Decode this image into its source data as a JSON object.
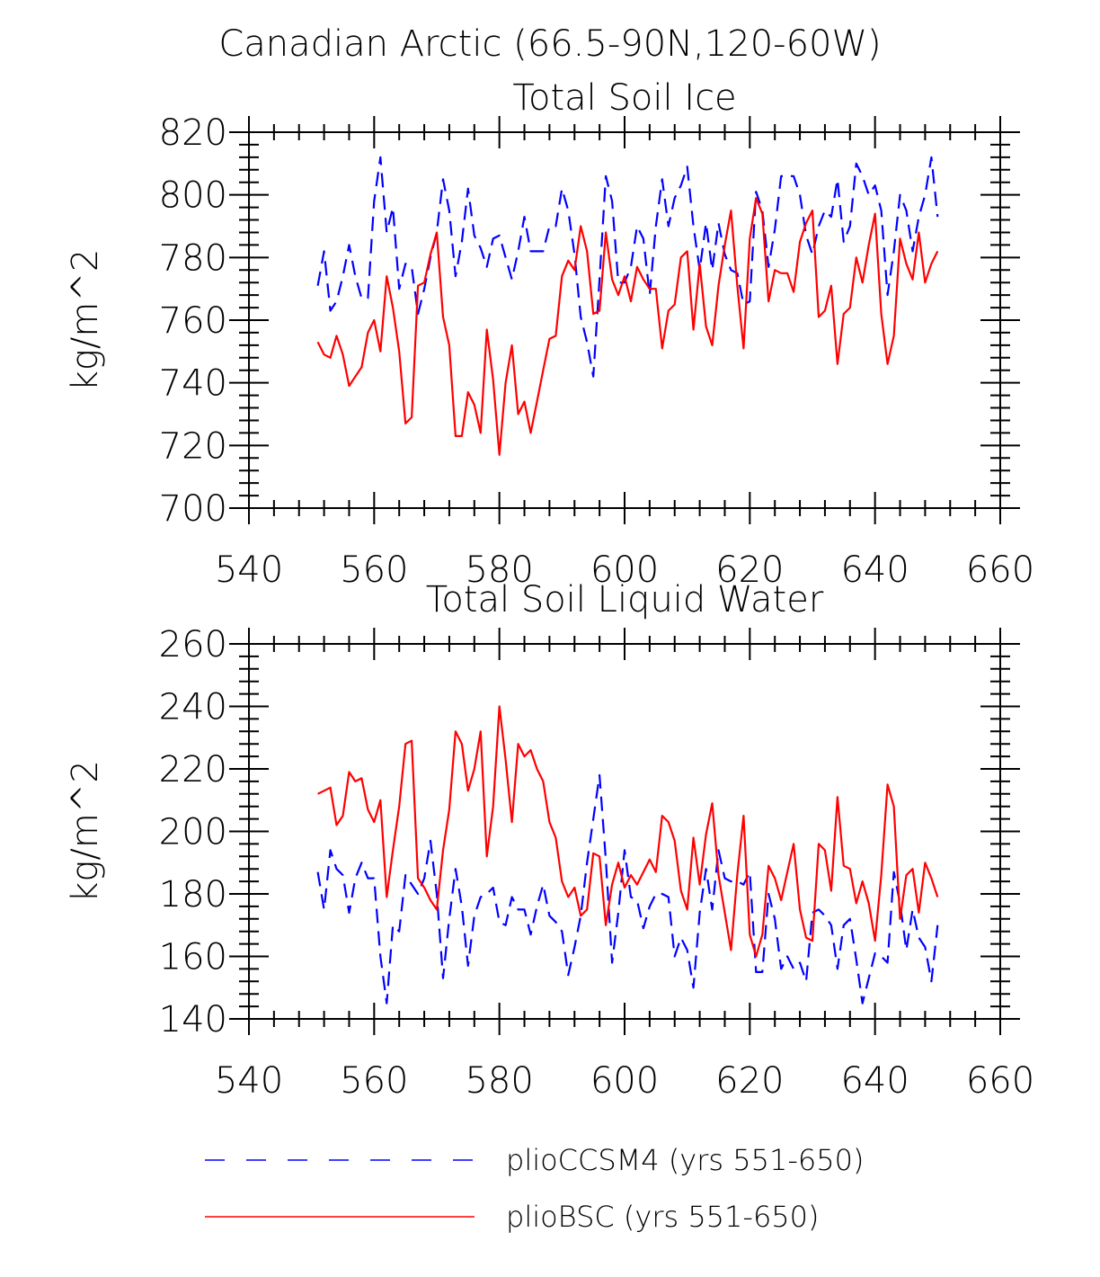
{
  "figure_title": "Canadian Arctic (66.5-90N,120-60W)",
  "legend": [
    {
      "label": "plioCCSM4 (yrs 551-650)",
      "color": "#0000ff",
      "dash": "dashed"
    },
    {
      "label": "plioBSC (yrs 551-650)",
      "color": "#ff0000",
      "dash": "solid"
    }
  ],
  "chart_data": [
    {
      "type": "line",
      "title": "Total Soil Ice",
      "xlabel": "",
      "ylabel": "kg/m^2",
      "xlim": [
        540,
        660
      ],
      "ylim": [
        700,
        820
      ],
      "xticks": [
        540,
        560,
        580,
        600,
        620,
        640,
        660
      ],
      "yticks": [
        700,
        720,
        740,
        760,
        780,
        800,
        820
      ],
      "x_start": 551,
      "grid": false,
      "series": [
        {
          "name": "plioCCSM4 (yrs 551-650)",
          "color": "#0000ff",
          "dash": "dashed",
          "values": [
            771,
            782,
            763,
            766,
            774,
            784,
            774,
            767,
            767,
            798,
            812,
            788,
            796,
            770,
            778,
            777,
            762,
            770,
            780,
            788,
            805,
            795,
            774,
            785,
            802,
            787,
            783,
            777,
            786,
            787,
            780,
            773,
            782,
            793,
            782,
            782,
            782,
            790,
            790,
            802,
            795,
            781,
            761,
            753,
            742,
            773,
            806,
            798,
            772,
            772,
            777,
            790,
            786,
            768,
            790,
            805,
            790,
            799,
            803,
            809,
            790,
            776,
            791,
            776,
            791,
            781,
            776,
            775,
            765,
            766,
            801,
            795,
            777,
            789,
            806,
            806,
            806,
            800,
            787,
            781,
            790,
            795,
            793,
            805,
            785,
            790,
            810,
            806,
            800,
            803,
            795,
            768,
            782,
            800,
            795,
            782,
            793,
            800,
            812,
            793
          ]
        },
        {
          "name": "plioBSC (yrs 551-650)",
          "color": "#ff0000",
          "dash": "solid",
          "values": [
            753,
            749,
            748,
            755,
            749,
            739,
            742,
            745,
            756,
            760,
            750,
            774,
            764,
            750,
            727,
            729,
            771,
            772,
            781,
            788,
            761,
            752,
            723,
            723,
            737,
            733,
            724,
            757,
            741,
            717,
            740,
            752,
            730,
            734,
            724,
            734,
            744,
            754,
            755,
            774,
            779,
            776,
            790,
            782,
            762,
            763,
            788,
            773,
            768,
            774,
            766,
            777,
            773,
            770,
            770,
            751,
            763,
            765,
            780,
            782,
            757,
            778,
            758,
            752,
            771,
            784,
            795,
            771,
            751,
            786,
            799,
            794,
            766,
            776,
            775,
            775,
            769,
            785,
            791,
            795,
            761,
            763,
            771,
            746,
            762,
            764,
            780,
            772,
            784,
            794,
            762,
            746,
            755,
            786,
            778,
            773,
            788,
            772,
            778,
            782
          ]
        }
      ]
    },
    {
      "type": "line",
      "title": "Total Soil Liquid Water",
      "xlabel": "",
      "ylabel": "kg/m^2",
      "xlim": [
        540,
        660
      ],
      "ylim": [
        140,
        260
      ],
      "xticks": [
        540,
        560,
        580,
        600,
        620,
        640,
        660
      ],
      "yticks": [
        140,
        160,
        180,
        200,
        220,
        240,
        260
      ],
      "x_start": 551,
      "grid": false,
      "series": [
        {
          "name": "plioCCSM4 (yrs 551-650)",
          "color": "#0000ff",
          "dash": "dashed",
          "values": [
            187,
            175,
            194,
            188,
            186,
            174,
            185,
            190,
            185,
            185,
            160,
            145,
            170,
            168,
            186,
            183,
            180,
            185,
            197,
            180,
            153,
            172,
            188,
            176,
            157,
            173,
            179,
            180,
            182,
            171,
            170,
            179,
            175,
            175,
            167,
            176,
            183,
            173,
            171,
            168,
            154,
            163,
            173,
            190,
            204,
            218,
            191,
            158,
            174,
            194,
            179,
            178,
            169,
            176,
            180,
            180,
            179,
            160,
            166,
            162,
            150,
            174,
            188,
            175,
            194,
            185,
            184,
            184,
            183,
            187,
            155,
            155,
            180,
            172,
            156,
            160,
            156,
            158,
            152,
            174,
            175,
            173,
            170,
            156,
            170,
            172,
            159,
            145,
            153,
            161,
            160,
            158,
            187,
            177,
            162,
            175,
            166,
            163,
            152,
            170
          ]
        },
        {
          "name": "plioBSC (yrs 551-650)",
          "color": "#ff0000",
          "dash": "solid",
          "values": [
            212,
            213,
            214,
            202,
            205,
            219,
            216,
            217,
            207,
            203,
            210,
            179,
            194,
            208,
            228,
            229,
            185,
            182,
            178,
            175,
            194,
            207,
            232,
            228,
            213,
            220,
            232,
            192,
            208,
            240,
            223,
            203,
            228,
            224,
            226,
            220,
            216,
            203,
            198,
            184,
            179,
            182,
            173,
            175,
            193,
            192,
            170,
            183,
            190,
            182,
            186,
            183,
            187,
            191,
            187,
            205,
            203,
            197,
            181,
            175,
            198,
            183,
            199,
            209,
            186,
            174,
            162,
            186,
            205,
            167,
            160,
            167,
            189,
            185,
            178,
            187,
            196,
            175,
            166,
            165,
            196,
            194,
            181,
            211,
            189,
            188,
            177,
            184,
            177,
            165,
            186,
            215,
            208,
            172,
            186,
            188,
            174,
            190,
            185,
            179
          ]
        }
      ]
    }
  ]
}
